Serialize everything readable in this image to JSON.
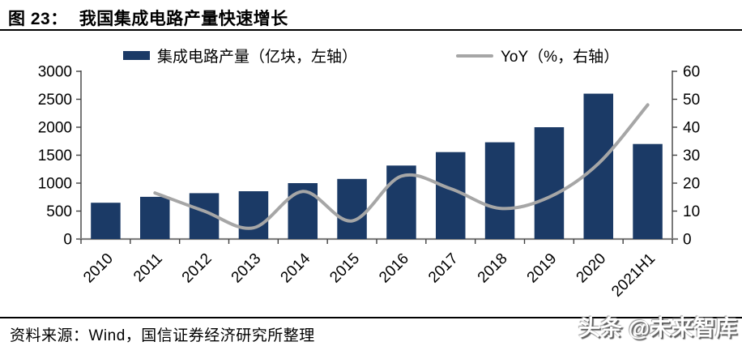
{
  "figure": {
    "label": "图 23：",
    "title": "我国集成电路产量快速增长"
  },
  "footer": {
    "source": "资料来源：Wind，国信证券经济研究所整理"
  },
  "watermark": "头条 @未来智库",
  "colors": {
    "bar": "#1B3A66",
    "line": "#A6A6A6",
    "axis": "#404040",
    "baseline": "#7F7F7F",
    "text": "#000000"
  },
  "chart_data": {
    "type": "bar",
    "subtype": "bar+line combo, dual axis",
    "categories": [
      "2010",
      "2011",
      "2012",
      "2013",
      "2014",
      "2015",
      "2016",
      "2017",
      "2018",
      "2019",
      "2020",
      "2021H1"
    ],
    "series": [
      {
        "name": "集成电路产量（亿块，左轴）",
        "type": "bar",
        "axis": "left",
        "values": [
          650,
          755,
          820,
          855,
          1000,
          1075,
          1315,
          1555,
          1730,
          2000,
          2600,
          1700
        ]
      },
      {
        "name": "YoY（%，右轴）",
        "type": "line",
        "axis": "right",
        "smooth": true,
        "values": [
          null,
          16.5,
          10,
          4,
          17,
          6.5,
          22.5,
          18,
          11,
          15,
          27,
          48
        ]
      }
    ],
    "left_axis": {
      "min": 0,
      "max": 3000,
      "ticks": [
        0,
        500,
        1000,
        1500,
        2000,
        2500,
        3000
      ]
    },
    "right_axis": {
      "min": 0,
      "max": 60,
      "ticks": [
        0,
        10,
        20,
        30,
        40,
        50,
        60
      ]
    },
    "grid": false,
    "legend_position": "top",
    "x_label_rotation": -45
  }
}
